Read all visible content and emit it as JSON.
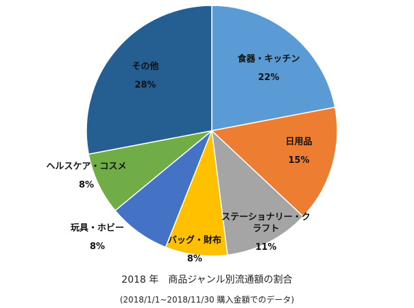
{
  "chart_data": {
    "type": "pie",
    "title": "2018 年　商品ジャンル別流通額の割合",
    "subtitle": "(2018/1/1~2018/11/30 購入金額でのデータ)",
    "slices": [
      {
        "name": "食器・キッチン",
        "label_lines": [
          "食器・キッチン"
        ],
        "value": 22,
        "label": "22%",
        "color": "#5B9BD5"
      },
      {
        "name": "日用品",
        "label_lines": [
          "日用品"
        ],
        "value": 15,
        "label": "15%",
        "color": "#ED7D31"
      },
      {
        "name": "ステーショナリー・クラフト",
        "label_lines": [
          "ステーショナリー・ク",
          "ラフト"
        ],
        "value": 11,
        "label": "11%",
        "color": "#A5A5A5"
      },
      {
        "name": "バッグ・財布",
        "label_lines": [
          "バッグ・財布"
        ],
        "value": 8,
        "label": "8%",
        "color": "#FFC000"
      },
      {
        "name": "玩具・ホビー",
        "label_lines": [
          "玩具・ホビー"
        ],
        "value": 8,
        "label": "8%",
        "color": "#4472C4"
      },
      {
        "name": "ヘルスケア・コスメ",
        "label_lines": [
          "ヘルスケア・コスメ"
        ],
        "value": 8,
        "label": "8%",
        "color": "#70AD47"
      },
      {
        "name": "その他",
        "label_lines": [
          "その他"
        ],
        "value": 28,
        "label": "28%",
        "color": "#255E91"
      }
    ],
    "start_angle": "12 o'clock",
    "direction": "clockwise",
    "legend": "none"
  }
}
